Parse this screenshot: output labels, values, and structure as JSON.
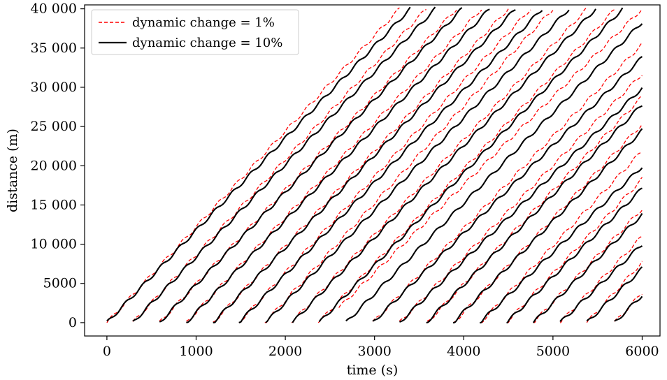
{
  "chart_data": {
    "type": "line",
    "title": "",
    "xlabel": "time (s)",
    "ylabel": "distance (m)",
    "xlim": [
      -250,
      6200
    ],
    "ylim": [
      -1700,
      40500
    ],
    "xticks": [
      0,
      1000,
      2000,
      3000,
      4000,
      5000,
      6000
    ],
    "xtick_labels": [
      "0",
      "1000",
      "2000",
      "3000",
      "4000",
      "5000",
      "6000"
    ],
    "yticks": [
      0,
      5000,
      10000,
      15000,
      20000,
      25000,
      30000,
      35000,
      40000
    ],
    "ytick_labels": [
      "0",
      "5000",
      "10 000",
      "15 000",
      "20 000",
      "25 000",
      "30 000",
      "35 000",
      "40 000"
    ],
    "grid": false,
    "legend_position": "top-left",
    "series": [
      {
        "name": "dynamic change = 1%",
        "color": "#ff0000",
        "dash": "dashed",
        "trajectories": [
          {
            "x": [
              0,
              3280
            ],
            "y": [
              0,
              40000
            ]
          },
          {
            "x": [
              290,
              3580
            ],
            "y": [
              0,
              40000
            ]
          },
          {
            "x": [
              590,
              3920
            ],
            "y": [
              0,
              40000
            ]
          },
          {
            "x": [
              890,
              4200
            ],
            "y": [
              0,
              40000
            ]
          },
          {
            "x": [
              1190,
              4500
            ],
            "y": [
              0,
              40000
            ]
          },
          {
            "x": [
              1480,
              4750
            ],
            "y": [
              0,
              40000
            ]
          },
          {
            "x": [
              1770,
              5000
            ],
            "y": [
              0,
              40000
            ]
          },
          {
            "x": [
              2070,
              5380
            ],
            "y": [
              0,
              40000
            ]
          },
          {
            "x": [
              2370,
              5700
            ],
            "y": [
              0,
              40000
            ]
          },
          {
            "x": [
              2600,
              6000
            ],
            "y": [
              1900,
              40000
            ]
          },
          {
            "x": [
              2980,
              6000
            ],
            "y": [
              0,
              35500
            ]
          },
          {
            "x": [
              3280,
              6000
            ],
            "y": [
              0,
              31700
            ]
          },
          {
            "x": [
              3590,
              6000
            ],
            "y": [
              0,
              28800
            ]
          },
          {
            "x": [
              3890,
              6000
            ],
            "y": [
              0,
              25300
            ]
          },
          {
            "x": [
              4190,
              6000
            ],
            "y": [
              0,
              21900
            ]
          },
          {
            "x": [
              4480,
              6000
            ],
            "y": [
              0,
              18300
            ]
          },
          {
            "x": [
              4780,
              6000
            ],
            "y": [
              0,
              14500
            ]
          },
          {
            "x": [
              5080,
              6000
            ],
            "y": [
              0,
              11000
            ]
          },
          {
            "x": [
              5380,
              6000
            ],
            "y": [
              0,
              7700
            ]
          },
          {
            "x": [
              5690,
              6000
            ],
            "y": [
              0,
              3800
            ]
          }
        ]
      },
      {
        "name": "dynamic change = 10%",
        "color": "#000000",
        "dash": "solid",
        "trajectories": [
          {
            "x": [
              0,
              3400
            ],
            "y": [
              0,
              40000
            ]
          },
          {
            "x": [
              290,
              3680
            ],
            "y": [
              0,
              40000
            ]
          },
          {
            "x": [
              590,
              3980
            ],
            "y": [
              0,
              40000
            ]
          },
          {
            "x": [
              890,
              4290
            ],
            "y": [
              0,
              40000
            ]
          },
          {
            "x": [
              1190,
              4580
            ],
            "y": [
              0,
              40000
            ]
          },
          {
            "x": [
              1480,
              4880
            ],
            "y": [
              0,
              40000
            ]
          },
          {
            "x": [
              1780,
              5180
            ],
            "y": [
              0,
              40000
            ]
          },
          {
            "x": [
              2080,
              5480
            ],
            "y": [
              0,
              40000
            ]
          },
          {
            "x": [
              2380,
              5780
            ],
            "y": [
              0,
              40000
            ]
          },
          {
            "x": [
              2680,
              6000
            ],
            "y": [
              0,
              38300
            ]
          },
          {
            "x": [
              2980,
              6000
            ],
            "y": [
              0,
              33800
            ]
          },
          {
            "x": [
              3280,
              6000
            ],
            "y": [
              0,
              29900
            ]
          },
          {
            "x": [
              3580,
              6000
            ],
            "y": [
              0,
              27800
            ]
          },
          {
            "x": [
              3880,
              6000
            ],
            "y": [
              0,
              24500
            ]
          },
          {
            "x": [
              4180,
              6000
            ],
            "y": [
              0,
              19900
            ]
          },
          {
            "x": [
              4480,
              6000
            ],
            "y": [
              0,
              17100
            ]
          },
          {
            "x": [
              4780,
              6000
            ],
            "y": [
              0,
              13800
            ]
          },
          {
            "x": [
              5080,
              6000
            ],
            "y": [
              0,
              10000
            ]
          },
          {
            "x": [
              5380,
              6000
            ],
            "y": [
              0,
              6900
            ]
          },
          {
            "x": [
              5690,
              6000
            ],
            "y": [
              0,
              3500
            ]
          }
        ]
      }
    ]
  }
}
